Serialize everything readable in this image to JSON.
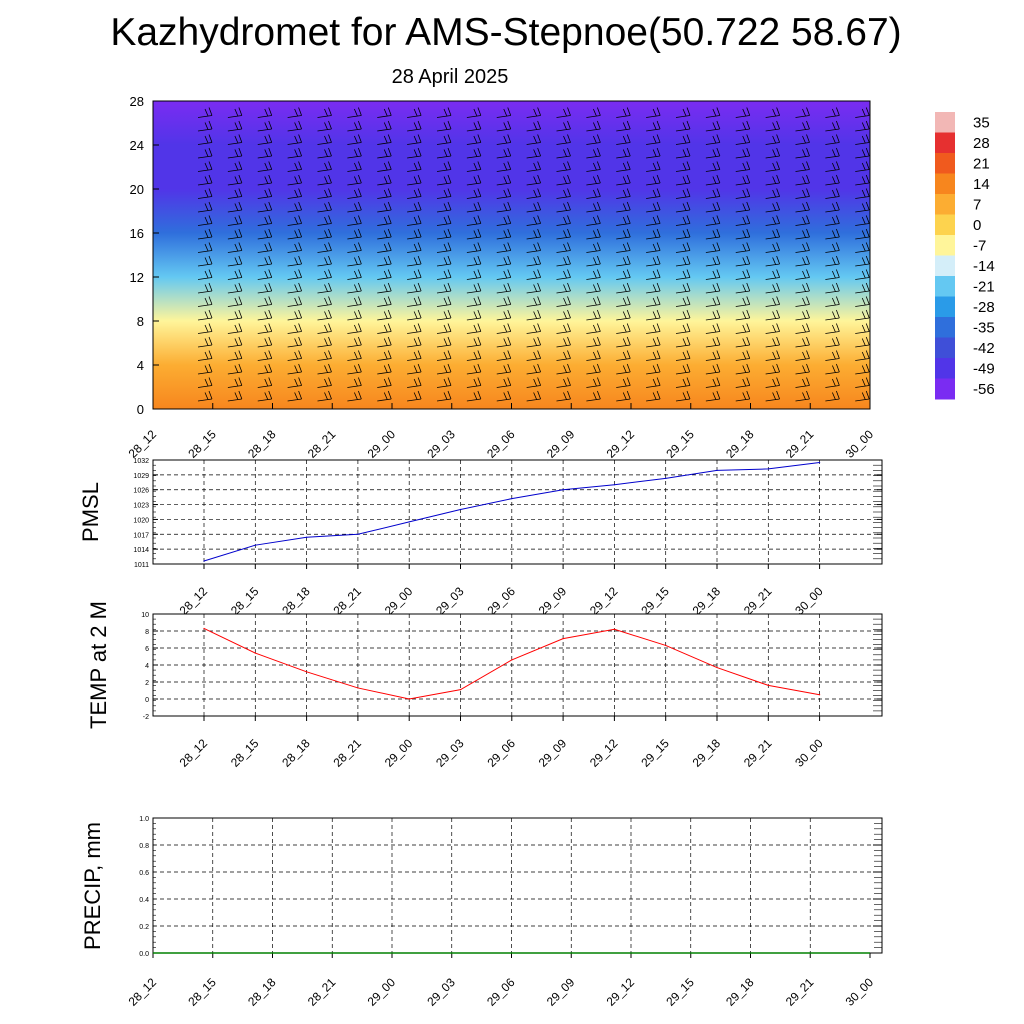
{
  "title": "Kazhydromet for AMS-Stepnoe(50.722 58.67)",
  "subtitle": "28 April 2025",
  "chart_data": [
    {
      "type": "heatmap",
      "name": "temperature-wind-cross-section",
      "x_ticks": [
        "28_12",
        "28_15",
        "28_18",
        "28_21",
        "29_00",
        "29_03",
        "29_06",
        "29_09",
        "29_12",
        "29_15",
        "29_18",
        "29_21",
        "30_00"
      ],
      "y_ticks": [
        0,
        4,
        8,
        12,
        16,
        20,
        24,
        28
      ],
      "ylim": [
        0,
        28
      ],
      "colorbar": {
        "labels": [
          "35",
          "28",
          "21",
          "14",
          "7",
          "0",
          "-7",
          "-14",
          "-21",
          "-28",
          "-35",
          "-42",
          "-49",
          "-56"
        ],
        "colors": [
          "#f2b7b5",
          "#e63030",
          "#f05a1e",
          "#f7861e",
          "#fcad32",
          "#fdd34e",
          "#fff59a",
          "#d4eef9",
          "#64c8f2",
          "#2a9be8",
          "#2f6fdc",
          "#3f4fd8",
          "#5135e8",
          "#7a2cf2"
        ]
      },
      "temperature_profile": [
        {
          "h": 0,
          "t": 11
        },
        {
          "h": 4,
          "t": 4
        },
        {
          "h": 8,
          "t": -7
        },
        {
          "h": 12,
          "t": -22
        },
        {
          "h": 16,
          "t": -35
        },
        {
          "h": 20,
          "t": -49
        },
        {
          "h": 24,
          "t": -52
        },
        {
          "h": 28,
          "t": -56
        }
      ],
      "grid": false
    },
    {
      "type": "line",
      "ylabel": "PMSL",
      "x": [
        "28_12",
        "28_15",
        "28_18",
        "28_21",
        "29_00",
        "29_03",
        "29_06",
        "29_09",
        "29_12",
        "29_15",
        "29_18",
        "29_21",
        "30_00"
      ],
      "y_ticks": [
        1011,
        1014,
        1017,
        1020,
        1023,
        1026,
        1029,
        1032
      ],
      "ylim": [
        1011,
        1032
      ],
      "series": [
        {
          "values": [
            1011.6,
            1014.8,
            1016.4,
            1017.0,
            1019.5,
            1022.0,
            1024.2,
            1026.0,
            1027.0,
            1028.3,
            1029.9,
            1030.2,
            1031.5
          ],
          "color": "#0000cc"
        }
      ],
      "grid": true
    },
    {
      "type": "line",
      "ylabel": "TEMP at 2 M",
      "x": [
        "28_12",
        "28_15",
        "28_18",
        "28_21",
        "29_00",
        "29_03",
        "29_06",
        "29_09",
        "29_12",
        "29_15",
        "29_18",
        "29_21",
        "30_00"
      ],
      "y_ticks": [
        -2,
        0,
        2,
        4,
        6,
        8,
        10
      ],
      "ylim": [
        -2,
        10
      ],
      "series": [
        {
          "values": [
            8.3,
            5.4,
            3.2,
            1.3,
            0.0,
            1.1,
            4.6,
            7.1,
            8.2,
            6.3,
            3.7,
            1.6,
            0.5
          ],
          "color": "#ff0000"
        }
      ],
      "grid": true
    },
    {
      "type": "line",
      "ylabel": "PRECIP, mm",
      "x": [
        "28_12",
        "28_15",
        "28_18",
        "28_21",
        "29_00",
        "29_03",
        "29_06",
        "29_09",
        "29_12",
        "29_15",
        "29_18",
        "29_21",
        "30_00"
      ],
      "y_ticks": [
        "0.0",
        "0.2",
        "0.4",
        "0.6",
        "0.8",
        "1.0"
      ],
      "ylim": [
        0,
        1.0
      ],
      "series": [
        {
          "values": [
            0,
            0,
            0,
            0,
            0,
            0,
            0,
            0,
            0,
            0,
            0,
            0,
            0
          ],
          "color": "#008000"
        }
      ],
      "grid": true
    }
  ]
}
